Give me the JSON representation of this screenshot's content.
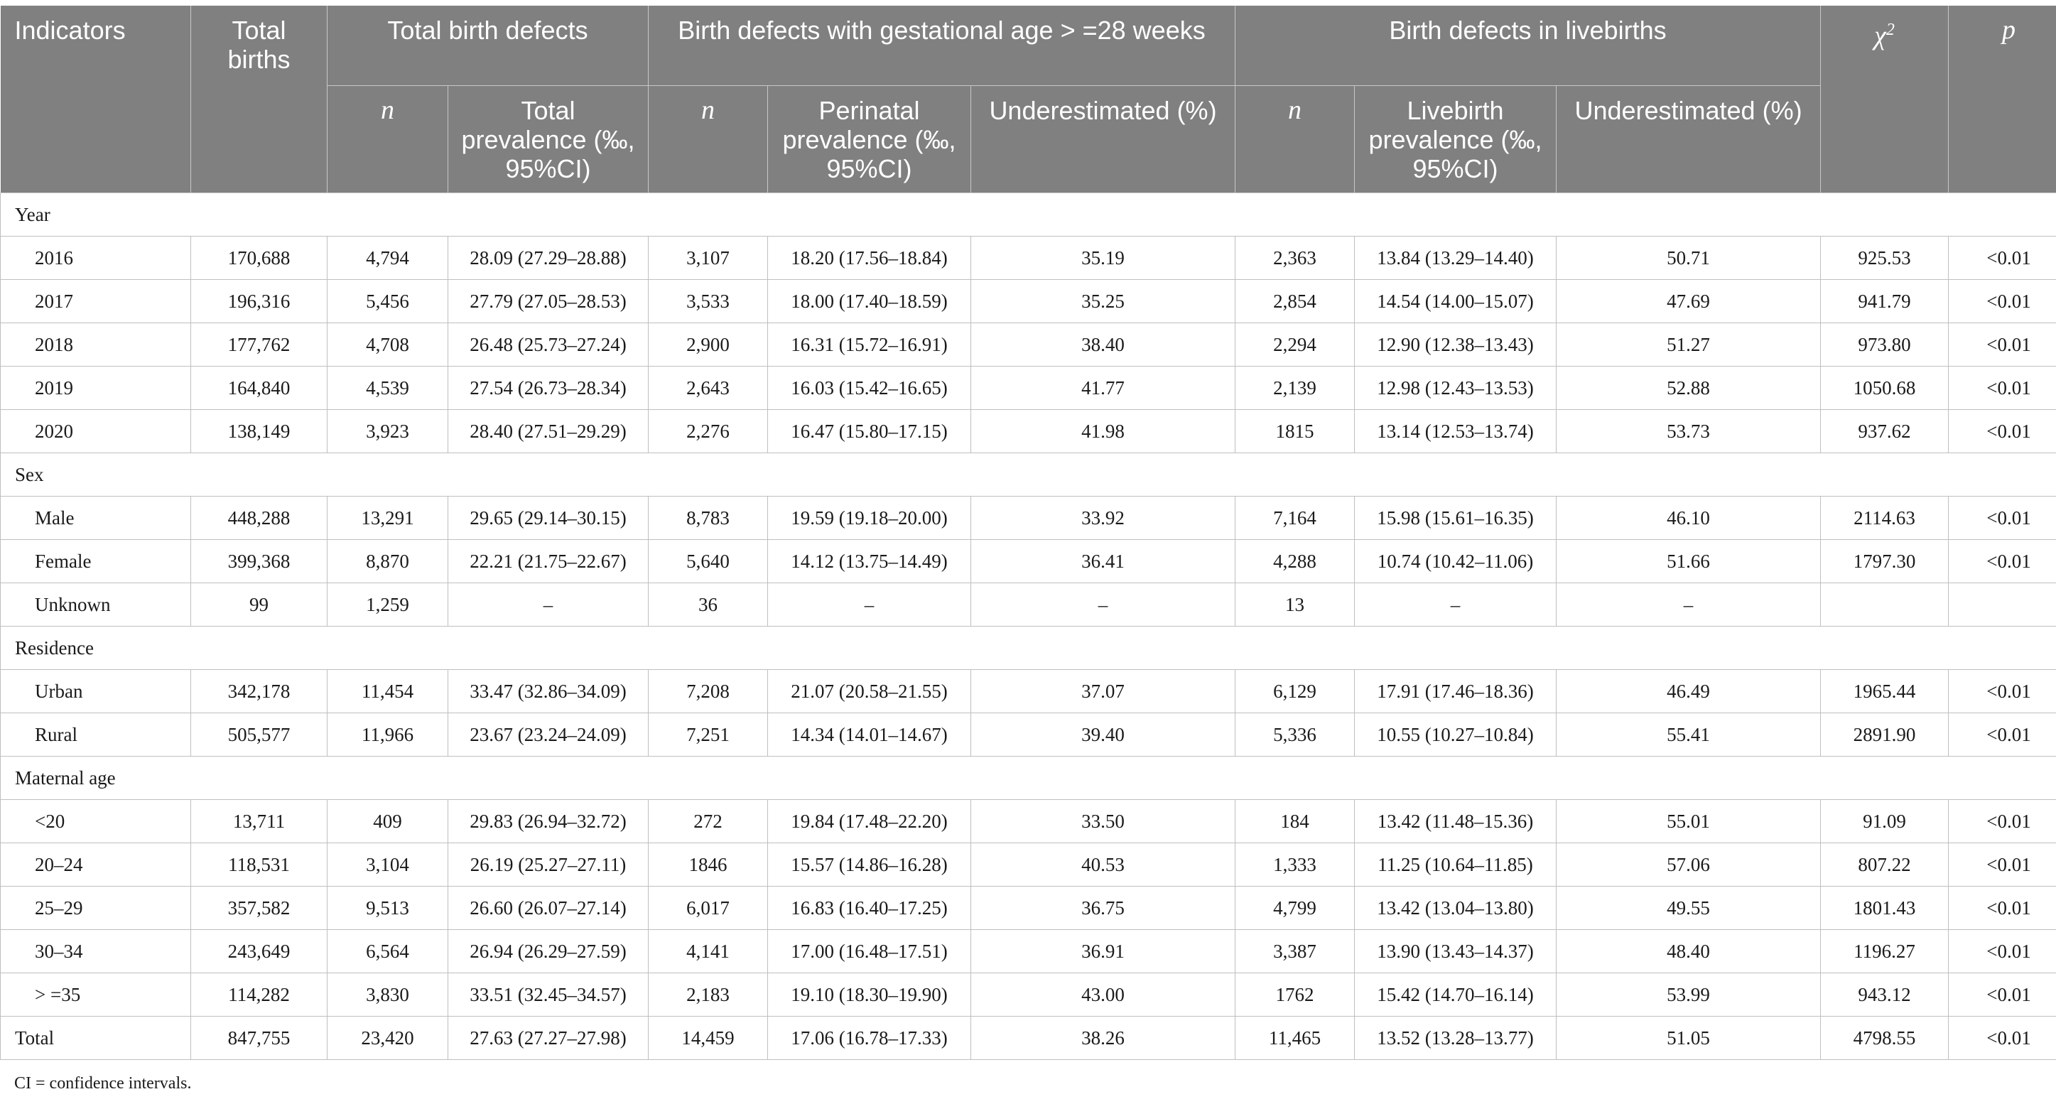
{
  "header": {
    "indicators": "Indicators",
    "total_births": "Total births",
    "total_birth_defects": "Total birth defects",
    "gestational": "Birth defects with gestational age > =28 weeks",
    "livebirths": "Birth defects in livebirths",
    "chi2": "χ2",
    "p": "p",
    "n": "n",
    "total_prevalence": "Total prevalence (‰, 95%CI)",
    "perinatal_prevalence": "Perinatal prevalence (‰, 95%CI)",
    "underestimated": "Underestimated (%)",
    "livebirth_prevalence": "Livebirth prevalence (‰, 95%CI)"
  },
  "sections": [
    {
      "title": "Year",
      "rows": [
        {
          "label": "2016",
          "births": "170,688",
          "n1": "4,794",
          "tp": "28.09 (27.29–28.88)",
          "n2": "3,107",
          "pp": "18.20 (17.56–18.84)",
          "u1": "35.19",
          "n3": "2,363",
          "lp": "13.84 (13.29–14.40)",
          "u2": "50.71",
          "chi": "925.53",
          "p": "<0.01"
        },
        {
          "label": "2017",
          "births": "196,316",
          "n1": "5,456",
          "tp": "27.79 (27.05–28.53)",
          "n2": "3,533",
          "pp": "18.00 (17.40–18.59)",
          "u1": "35.25",
          "n3": "2,854",
          "lp": "14.54 (14.00–15.07)",
          "u2": "47.69",
          "chi": "941.79",
          "p": "<0.01"
        },
        {
          "label": "2018",
          "births": "177,762",
          "n1": "4,708",
          "tp": "26.48 (25.73–27.24)",
          "n2": "2,900",
          "pp": "16.31 (15.72–16.91)",
          "u1": "38.40",
          "n3": "2,294",
          "lp": "12.90 (12.38–13.43)",
          "u2": "51.27",
          "chi": "973.80",
          "p": "<0.01"
        },
        {
          "label": "2019",
          "births": "164,840",
          "n1": "4,539",
          "tp": "27.54 (26.73–28.34)",
          "n2": "2,643",
          "pp": "16.03 (15.42–16.65)",
          "u1": "41.77",
          "n3": "2,139",
          "lp": "12.98 (12.43–13.53)",
          "u2": "52.88",
          "chi": "1050.68",
          "p": "<0.01"
        },
        {
          "label": "2020",
          "births": "138,149",
          "n1": "3,923",
          "tp": "28.40 (27.51–29.29)",
          "n2": "2,276",
          "pp": "16.47 (15.80–17.15)",
          "u1": "41.98",
          "n3": "1815",
          "lp": "13.14 (12.53–13.74)",
          "u2": "53.73",
          "chi": "937.62",
          "p": "<0.01"
        }
      ]
    },
    {
      "title": "Sex",
      "rows": [
        {
          "label": "Male",
          "births": "448,288",
          "n1": "13,291",
          "tp": "29.65 (29.14–30.15)",
          "n2": "8,783",
          "pp": "19.59 (19.18–20.00)",
          "u1": "33.92",
          "n3": "7,164",
          "lp": "15.98 (15.61–16.35)",
          "u2": "46.10",
          "chi": "2114.63",
          "p": "<0.01"
        },
        {
          "label": "Female",
          "births": "399,368",
          "n1": "8,870",
          "tp": "22.21 (21.75–22.67)",
          "n2": "5,640",
          "pp": "14.12 (13.75–14.49)",
          "u1": "36.41",
          "n3": "4,288",
          "lp": "10.74 (10.42–11.06)",
          "u2": "51.66",
          "chi": "1797.30",
          "p": "<0.01"
        },
        {
          "label": "Unknown",
          "births": "99",
          "n1": "1,259",
          "tp": "–",
          "n2": "36",
          "pp": "–",
          "u1": "–",
          "n3": "13",
          "lp": "–",
          "u2": "–",
          "chi": "",
          "p": ""
        }
      ]
    },
    {
      "title": "Residence",
      "rows": [
        {
          "label": "Urban",
          "births": "342,178",
          "n1": "11,454",
          "tp": "33.47 (32.86–34.09)",
          "n2": "7,208",
          "pp": "21.07 (20.58–21.55)",
          "u1": "37.07",
          "n3": "6,129",
          "lp": "17.91 (17.46–18.36)",
          "u2": "46.49",
          "chi": "1965.44",
          "p": "<0.01"
        },
        {
          "label": "Rural",
          "births": "505,577",
          "n1": "11,966",
          "tp": "23.67 (23.24–24.09)",
          "n2": "7,251",
          "pp": "14.34 (14.01–14.67)",
          "u1": "39.40",
          "n3": "5,336",
          "lp": "10.55 (10.27–10.84)",
          "u2": "55.41",
          "chi": "2891.90",
          "p": "<0.01"
        }
      ]
    },
    {
      "title": "Maternal age",
      "rows": [
        {
          "label": "<20",
          "births": "13,711",
          "n1": "409",
          "tp": "29.83 (26.94–32.72)",
          "n2": "272",
          "pp": "19.84 (17.48–22.20)",
          "u1": "33.50",
          "n3": "184",
          "lp": "13.42 (11.48–15.36)",
          "u2": "55.01",
          "chi": "91.09",
          "p": "<0.01"
        },
        {
          "label": "20–24",
          "births": "118,531",
          "n1": "3,104",
          "tp": "26.19 (25.27–27.11)",
          "n2": "1846",
          "pp": "15.57 (14.86–16.28)",
          "u1": "40.53",
          "n3": "1,333",
          "lp": "11.25 (10.64–11.85)",
          "u2": "57.06",
          "chi": "807.22",
          "p": "<0.01"
        },
        {
          "label": "25–29",
          "births": "357,582",
          "n1": "9,513",
          "tp": "26.60 (26.07–27.14)",
          "n2": "6,017",
          "pp": "16.83 (16.40–17.25)",
          "u1": "36.75",
          "n3": "4,799",
          "lp": "13.42 (13.04–13.80)",
          "u2": "49.55",
          "chi": "1801.43",
          "p": "<0.01"
        },
        {
          "label": "30–34",
          "births": "243,649",
          "n1": "6,564",
          "tp": "26.94 (26.29–27.59)",
          "n2": "4,141",
          "pp": "17.00 (16.48–17.51)",
          "u1": "36.91",
          "n3": "3,387",
          "lp": "13.90 (13.43–14.37)",
          "u2": "48.40",
          "chi": "1196.27",
          "p": "<0.01"
        },
        {
          "label": "> =35",
          "births": "114,282",
          "n1": "3,830",
          "tp": "33.51 (32.45–34.57)",
          "n2": "2,183",
          "pp": "19.10 (18.30–19.90)",
          "u1": "43.00",
          "n3": "1762",
          "lp": "15.42 (14.70–16.14)",
          "u2": "53.99",
          "chi": "943.12",
          "p": "<0.01"
        }
      ]
    }
  ],
  "total": {
    "label": "Total",
    "births": "847,755",
    "n1": "23,420",
    "tp": "27.63 (27.27–27.98)",
    "n2": "14,459",
    "pp": "17.06 (16.78–17.33)",
    "u1": "38.26",
    "n3": "11,465",
    "lp": "13.52 (13.28–13.77)",
    "u2": "51.05",
    "chi": "4798.55",
    "p": "<0.01"
  },
  "footnote": "CI = confidence intervals."
}
